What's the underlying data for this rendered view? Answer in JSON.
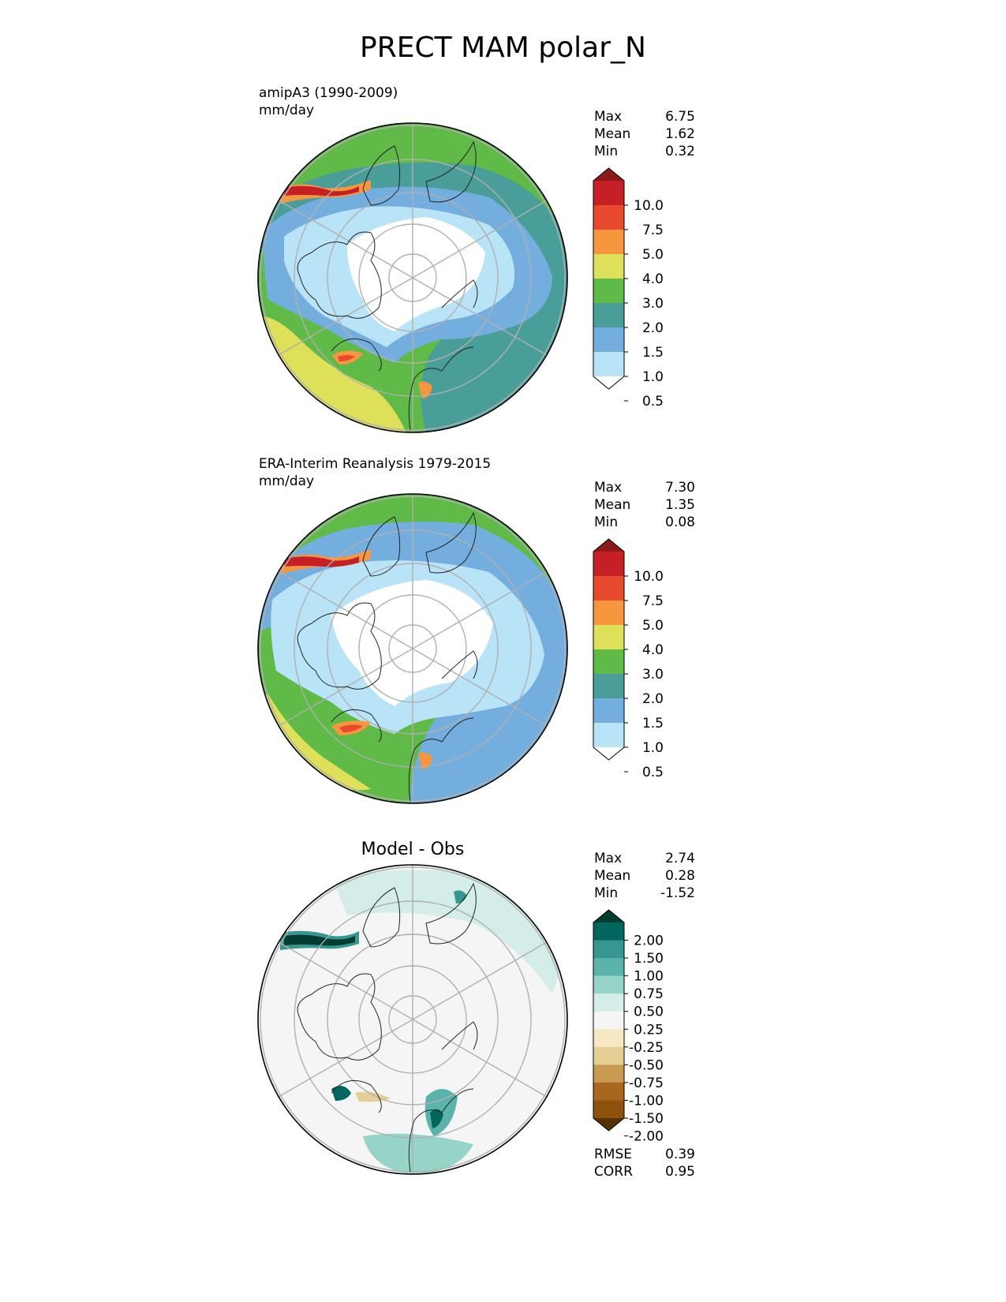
{
  "title": "PRECT MAM polar_N",
  "panels": [
    {
      "id": "test",
      "label_line1": "amipA3 (1990-2009)",
      "label_line2": "mm/day",
      "centered_title": "",
      "stats": [
        [
          "Max",
          "6.75"
        ],
        [
          "Mean",
          "1.62"
        ],
        [
          "Min",
          "0.32"
        ]
      ],
      "colorbar_ticks": [
        "10.0",
        "7.5",
        "5.0",
        "4.0",
        "3.0",
        "2.0",
        "1.5",
        "1.0",
        "0.5"
      ],
      "colorbar_colors": [
        "#8b1a1a",
        "#c62026",
        "#e84a2e",
        "#f6973f",
        "#dfe05a",
        "#5fba47",
        "#4a9e9a",
        "#74aede",
        "#b9e3f6",
        "#ffffff"
      ],
      "extra_stats": []
    },
    {
      "id": "reference",
      "label_line1": "ERA-Interim Reanalysis 1979-2015",
      "label_line2": "mm/day",
      "centered_title": "",
      "stats": [
        [
          "Max",
          "7.30"
        ],
        [
          "Mean",
          "1.35"
        ],
        [
          "Min",
          "0.08"
        ]
      ],
      "colorbar_ticks": [
        "10.0",
        "7.5",
        "5.0",
        "4.0",
        "3.0",
        "2.0",
        "1.5",
        "1.0",
        "0.5"
      ],
      "colorbar_colors": [
        "#8b1a1a",
        "#c62026",
        "#e84a2e",
        "#f6973f",
        "#dfe05a",
        "#5fba47",
        "#4a9e9a",
        "#74aede",
        "#b9e3f6",
        "#ffffff"
      ],
      "extra_stats": []
    },
    {
      "id": "diff",
      "label_line1": "",
      "label_line2": "",
      "centered_title": "Model - Obs",
      "stats": [
        [
          "Max",
          "2.74"
        ],
        [
          "Mean",
          "0.28"
        ],
        [
          "Min",
          "-1.52"
        ]
      ],
      "colorbar_ticks": [
        "2.00",
        "1.50",
        "1.00",
        "0.75",
        "0.50",
        "0.25",
        "-0.25",
        "-0.50",
        "-0.75",
        "-1.00",
        "-1.50",
        "-2.00"
      ],
      "colorbar_colors": [
        "#003c30",
        "#01665e",
        "#35978f",
        "#5ab4ac",
        "#97d4c8",
        "#d4ede8",
        "#f5f5f5",
        "#f6e8c3",
        "#e6cf95",
        "#c99a52",
        "#a9661d",
        "#8c510a",
        "#543005"
      ],
      "extra_stats": [
        [
          "RMSE",
          "0.39"
        ],
        [
          "CORR",
          "0.95"
        ]
      ]
    }
  ],
  "chart_data": {
    "type": "heatmap",
    "title": "PRECT MAM polar_N",
    "projection": "north-polar stereographic",
    "maps": [
      {
        "name": "amipA3 (1990-2009)",
        "units": "mm/day",
        "max": 6.75,
        "mean": 1.62,
        "min": 0.32,
        "levels": [
          0.5,
          1.0,
          1.5,
          2.0,
          3.0,
          4.0,
          5.0,
          7.5,
          10.0
        ]
      },
      {
        "name": "ERA-Interim Reanalysis 1979-2015",
        "units": "mm/day",
        "max": 7.3,
        "mean": 1.35,
        "min": 0.08,
        "levels": [
          0.5,
          1.0,
          1.5,
          2.0,
          3.0,
          4.0,
          5.0,
          7.5,
          10.0
        ]
      },
      {
        "name": "Model - Obs",
        "max": 2.74,
        "mean": 0.28,
        "min": -1.52,
        "rmse": 0.39,
        "corr": 0.95,
        "levels": [
          -2.0,
          -1.5,
          -1.0,
          -0.75,
          -0.5,
          -0.25,
          0.25,
          0.5,
          0.75,
          1.0,
          1.5,
          2.0
        ]
      }
    ]
  }
}
